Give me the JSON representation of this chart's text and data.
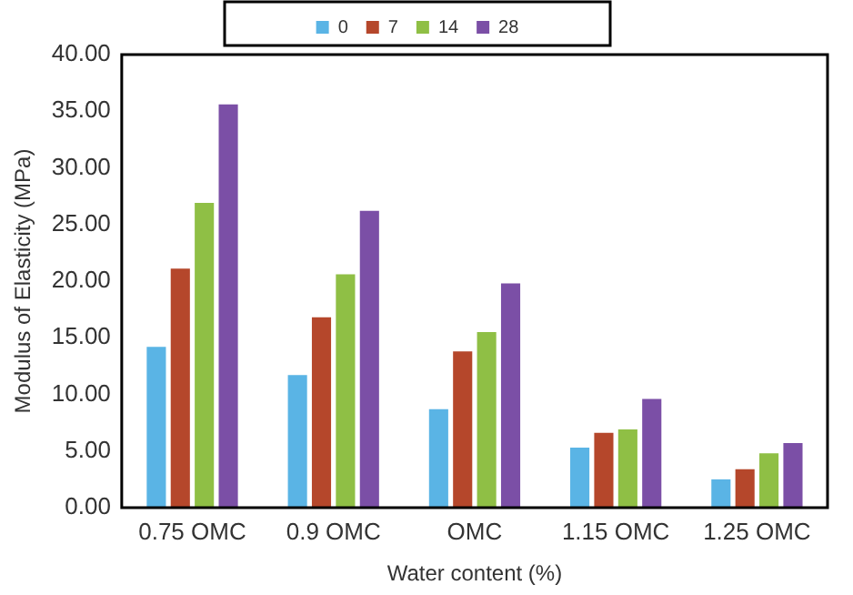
{
  "chart_data": {
    "type": "bar",
    "xlabel": "Water content (%)",
    "ylabel": "Modulus of Elasticity (MPa)",
    "categories": [
      "0.75 OMC",
      "0.9 OMC",
      "OMC",
      "1.15 OMC",
      "1.25 OMC"
    ],
    "series": [
      {
        "name": "0",
        "color": "#5ab4e5",
        "values": [
          14.2,
          11.7,
          8.7,
          5.3,
          2.5
        ]
      },
      {
        "name": "7",
        "color": "#b5472b",
        "values": [
          21.1,
          16.8,
          13.8,
          6.6,
          3.4
        ]
      },
      {
        "name": "14",
        "color": "#8fbf45",
        "values": [
          26.9,
          20.6,
          15.5,
          6.9,
          4.8
        ]
      },
      {
        "name": "28",
        "color": "#7b4fa6",
        "values": [
          35.6,
          26.2,
          19.8,
          9.6,
          5.7
        ]
      }
    ],
    "ylim": [
      0,
      40
    ],
    "yticks": [
      {
        "value": 0,
        "label": "0.00"
      },
      {
        "value": 5,
        "label": "5.00"
      },
      {
        "value": 10,
        "label": "10.00"
      },
      {
        "value": 15,
        "label": "15.00"
      },
      {
        "value": 20,
        "label": "20.00"
      },
      {
        "value": 25,
        "label": "25.00"
      },
      {
        "value": 30,
        "label": "30.00"
      },
      {
        "value": 35,
        "label": "35.00"
      },
      {
        "value": 40,
        "label": "40.00"
      }
    ],
    "grid": false,
    "legend": "top"
  }
}
